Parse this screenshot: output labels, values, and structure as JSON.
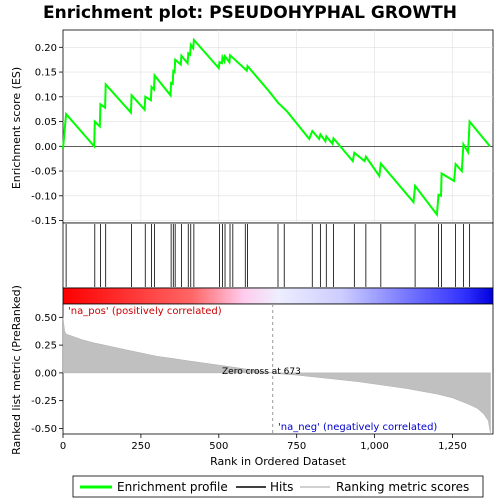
{
  "chart_data": {
    "type": "line",
    "title": "Enrichment plot: PSEUDOHYPHAL GROWTH",
    "top_panel": {
      "ylabel": "Enrichment score (ES)",
      "ylim": [
        -0.155,
        0.235
      ],
      "yticks": [
        -0.15,
        -0.1,
        -0.05,
        0.0,
        0.05,
        0.1,
        0.15,
        0.2
      ],
      "ytick_labels": [
        "-0.15",
        "-0.10",
        "-0.05",
        "0.00",
        "0.05",
        "0.10",
        "0.15",
        "0.20"
      ],
      "series": [
        {
          "name": "Enrichment profile",
          "color": "#00ff00",
          "points": [
            [
              0,
              -0.005
            ],
            [
              10,
              0.065
            ],
            [
              100,
              0.0
            ],
            [
              102,
              0.05
            ],
            [
              118,
              0.04
            ],
            [
              120,
              0.085
            ],
            [
              135,
              0.078
            ],
            [
              137,
              0.125
            ],
            [
              218,
              0.068
            ],
            [
              220,
              0.103
            ],
            [
              262,
              0.074
            ],
            [
              264,
              0.1
            ],
            [
              282,
              0.093
            ],
            [
              284,
              0.12
            ],
            [
              292,
              0.115
            ],
            [
              294,
              0.143
            ],
            [
              345,
              0.103
            ],
            [
              347,
              0.128
            ],
            [
              352,
              0.126
            ],
            [
              354,
              0.152
            ],
            [
              358,
              0.15
            ],
            [
              360,
              0.175
            ],
            [
              378,
              0.165
            ],
            [
              380,
              0.183
            ],
            [
              400,
              0.168
            ],
            [
              402,
              0.188
            ],
            [
              408,
              0.185
            ],
            [
              410,
              0.205
            ],
            [
              418,
              0.198
            ],
            [
              420,
              0.215
            ],
            [
              500,
              0.158
            ],
            [
              502,
              0.17
            ],
            [
              510,
              0.168
            ],
            [
              512,
              0.18
            ],
            [
              518,
              0.172
            ],
            [
              520,
              0.182
            ],
            [
              534,
              0.17
            ],
            [
              536,
              0.184
            ],
            [
              590,
              0.153
            ],
            [
              592,
              0.162
            ],
            [
              660,
              0.112
            ],
            [
              690,
              0.088
            ],
            [
              720,
              0.07
            ],
            [
              790,
              0.015
            ],
            [
              800,
              0.031
            ],
            [
              822,
              0.015
            ],
            [
              826,
              0.024
            ],
            [
              842,
              0.01
            ],
            [
              845,
              0.02
            ],
            [
              865,
              0.005
            ],
            [
              868,
              0.016
            ],
            [
              930,
              -0.03
            ],
            [
              935,
              -0.013
            ],
            [
              968,
              -0.03
            ],
            [
              972,
              -0.021
            ],
            [
              1015,
              -0.06
            ],
            [
              1020,
              -0.035
            ],
            [
              1125,
              -0.113
            ],
            [
              1130,
              -0.08
            ],
            [
              1200,
              -0.138
            ],
            [
              1205,
              -0.098
            ],
            [
              1213,
              -0.1
            ],
            [
              1215,
              -0.055
            ],
            [
              1255,
              -0.07
            ],
            [
              1260,
              -0.036
            ],
            [
              1280,
              -0.05
            ],
            [
              1285,
              0.004
            ],
            [
              1300,
              -0.012
            ],
            [
              1305,
              0.05
            ],
            [
              1370,
              0.0
            ]
          ]
        }
      ]
    },
    "hits": {
      "name": "Hits",
      "color": "#000000",
      "ranks": [
        10,
        102,
        120,
        137,
        220,
        264,
        284,
        294,
        347,
        354,
        360,
        380,
        402,
        410,
        420,
        502,
        512,
        520,
        536,
        545,
        585,
        592,
        690,
        710,
        800,
        826,
        845,
        868,
        935,
        972,
        1020,
        1130,
        1205,
        1215,
        1260,
        1285,
        1305
      ]
    },
    "bottom_panel": {
      "ylabel": "Ranked list metric (PreRanked)",
      "xlabel": "Rank in Ordered Dataset",
      "ylim": [
        -0.55,
        0.62
      ],
      "yticks": [
        -0.5,
        -0.25,
        0.0,
        0.25,
        0.5
      ],
      "ytick_labels": [
        "-0.50",
        "-0.25",
        "0.00",
        "0.25",
        "0.50"
      ],
      "xlim": [
        0,
        1380
      ],
      "xticks": [
        0,
        250,
        500,
        750,
        1000,
        1250
      ],
      "xtick_labels": [
        "0",
        "250",
        "500",
        "750",
        "1,000",
        "1,250"
      ],
      "metric_series": {
        "name": "Ranking metric scores",
        "color": "#c0c0c0",
        "points": [
          [
            0,
            0.5
          ],
          [
            5,
            0.38
          ],
          [
            10,
            0.35
          ],
          [
            30,
            0.33
          ],
          [
            60,
            0.3
          ],
          [
            100,
            0.27
          ],
          [
            150,
            0.24
          ],
          [
            200,
            0.21
          ],
          [
            250,
            0.18
          ],
          [
            300,
            0.15
          ],
          [
            350,
            0.13
          ],
          [
            400,
            0.11
          ],
          [
            450,
            0.09
          ],
          [
            500,
            0.07
          ],
          [
            550,
            0.05
          ],
          [
            600,
            0.03
          ],
          [
            650,
            0.01
          ],
          [
            673,
            0.0
          ],
          [
            700,
            -0.01
          ],
          [
            750,
            -0.02
          ],
          [
            800,
            -0.035
          ],
          [
            850,
            -0.05
          ],
          [
            900,
            -0.065
          ],
          [
            950,
            -0.08
          ],
          [
            1000,
            -0.1
          ],
          [
            1050,
            -0.12
          ],
          [
            1100,
            -0.14
          ],
          [
            1150,
            -0.165
          ],
          [
            1200,
            -0.19
          ],
          [
            1250,
            -0.225
          ],
          [
            1300,
            -0.28
          ],
          [
            1330,
            -0.32
          ],
          [
            1350,
            -0.37
          ],
          [
            1365,
            -0.43
          ],
          [
            1372,
            -0.55
          ]
        ]
      },
      "zero_cross": 673,
      "zero_cross_label": "Zero cross at 673",
      "pos_label": "'na_pos' (positively correlated)",
      "neg_label": "'na_neg' (negatively correlated)",
      "gradient_bar": {
        "stops": [
          [
            0,
            "#ff0000"
          ],
          [
            0.3,
            "#ff6666"
          ],
          [
            0.42,
            "#ffccee"
          ],
          [
            0.5,
            "#eeeeff"
          ],
          [
            0.65,
            "#ccccff"
          ],
          [
            0.8,
            "#7777ff"
          ],
          [
            0.93,
            "#3333ff"
          ],
          [
            1.0,
            "#0000dd"
          ]
        ]
      }
    },
    "legend": {
      "items": [
        {
          "label": "Enrichment profile",
          "color": "#00ff00",
          "kind": "line-thick"
        },
        {
          "label": "Hits",
          "color": "#000000",
          "kind": "line"
        },
        {
          "label": "Ranking metric scores",
          "color": "#c0c0c0",
          "kind": "line"
        }
      ]
    }
  }
}
